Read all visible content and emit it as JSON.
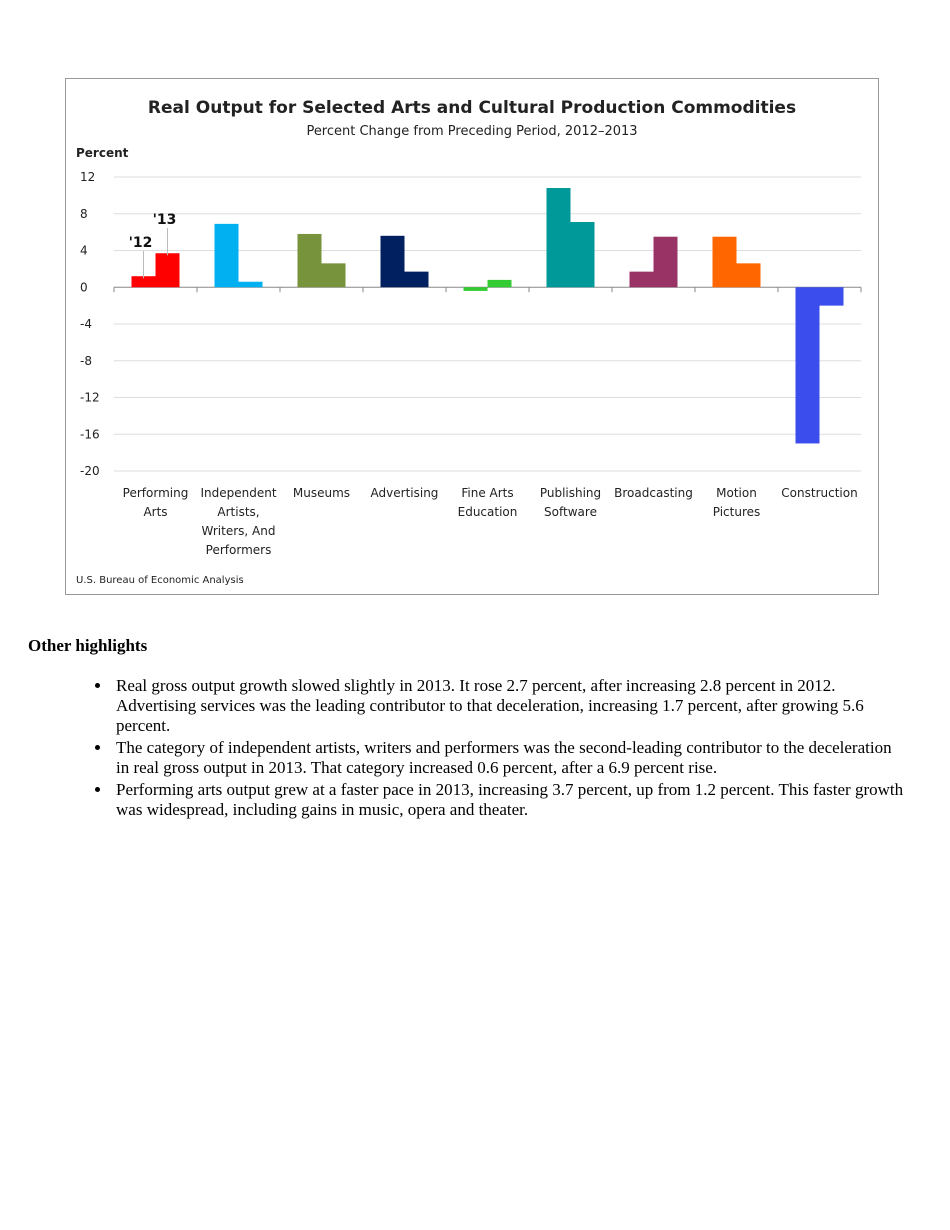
{
  "chart_data": {
    "type": "bar",
    "title": "Real Output for Selected Arts and Cultural Production Commodities",
    "subtitle": "Percent Change from Preceding Period,  2012–2013",
    "ylabel": "Percent",
    "ylim": [
      -20,
      12
    ],
    "yticks": [
      12,
      8,
      4,
      0,
      -4,
      -8,
      -12,
      -16,
      -20
    ],
    "grid": true,
    "categories": [
      [
        "Performing",
        "Arts"
      ],
      [
        "Independent",
        "Artists,",
        "Writers, And",
        "Performers"
      ],
      [
        "Museums"
      ],
      [
        "Advertising"
      ],
      [
        "Fine Arts",
        "Education"
      ],
      [
        "Publishing",
        "Software"
      ],
      [
        "Broadcasting"
      ],
      [
        "Motion",
        "Pictures"
      ],
      [
        "Construction"
      ]
    ],
    "colors": [
      "#ff0000",
      "#00b0f0",
      "#77933c",
      "#002060",
      "#33cc33",
      "#009999",
      "#993366",
      "#ff6600",
      "#3b4ded"
    ],
    "series": [
      {
        "name": "'12",
        "values": [
          1.2,
          6.9,
          5.8,
          5.6,
          -0.4,
          10.8,
          1.7,
          5.5,
          -17.0
        ]
      },
      {
        "name": "'13",
        "values": [
          3.7,
          0.6,
          2.6,
          1.7,
          0.8,
          7.1,
          5.5,
          2.6,
          -2.0
        ]
      }
    ],
    "source": "U.S. Bureau of Economic Analysis"
  },
  "highlights": {
    "heading": "Other highlights",
    "items": [
      "Real gross output growth slowed slightly in 2013. It rose 2.7 percent, after increasing 2.8 percent in 2012.  Advertising services was the leading contributor to that deceleration, increasing 1.7 percent, after growing 5.6 percent.",
      "The category of independent artists, writers and performers was the second-leading contributor to the deceleration in real gross output in 2013. That category increased 0.6 percent, after a 6.9 percent rise.",
      "Performing arts output grew at a faster pace in 2013, increasing 3.7 percent, up from 1.2 percent. This faster growth was widespread, including gains in music, opera and theater."
    ]
  }
}
